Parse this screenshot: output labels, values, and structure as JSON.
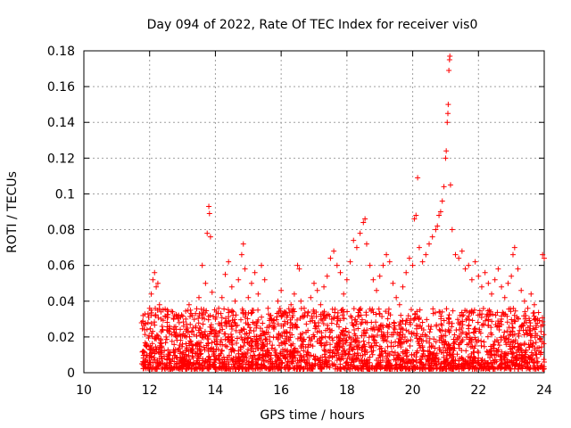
{
  "chart_data": {
    "type": "scatter",
    "title": "Day 094 of 2022, Rate Of TEC Index for receiver vis0",
    "xlabel": "GPS time / hours",
    "ylabel": "ROTI / TECUs",
    "xlim": [
      10,
      24
    ],
    "ylim": [
      0,
      0.18
    ],
    "x_ticks": [
      10,
      12,
      14,
      16,
      18,
      20,
      22,
      24
    ],
    "y_ticks": [
      0,
      0.02,
      0.04,
      0.06,
      0.08,
      0.1,
      0.12,
      0.14,
      0.16,
      0.18
    ],
    "x_tick_labels": [
      "10",
      "12",
      "14",
      "16",
      "18",
      "20",
      "22",
      "24"
    ],
    "y_tick_labels": [
      "0",
      "0.02",
      "0.04",
      "0.06",
      "0.08",
      "0.1",
      "0.12",
      "0.14",
      "0.16",
      "0.18"
    ],
    "grid": true,
    "marker": "+",
    "color": "#ff0000",
    "series": [
      {
        "name": "ROTI",
        "points": [
          [
            11.8,
            0.032
          ],
          [
            11.8,
            0.012
          ],
          [
            11.85,
            0.024
          ],
          [
            11.9,
            0.016
          ],
          [
            11.95,
            0.028
          ],
          [
            12.0,
            0.036
          ],
          [
            12.05,
            0.044
          ],
          [
            12.1,
            0.052
          ],
          [
            12.15,
            0.056
          ],
          [
            12.2,
            0.048
          ],
          [
            12.25,
            0.05
          ],
          [
            12.3,
            0.038
          ],
          [
            12.35,
            0.03
          ],
          [
            12.4,
            0.024
          ],
          [
            12.5,
            0.02
          ],
          [
            12.6,
            0.026
          ],
          [
            12.7,
            0.034
          ],
          [
            12.8,
            0.022
          ],
          [
            12.9,
            0.028
          ],
          [
            13.0,
            0.016
          ],
          [
            13.1,
            0.03
          ],
          [
            13.2,
            0.038
          ],
          [
            13.3,
            0.032
          ],
          [
            13.4,
            0.026
          ],
          [
            13.5,
            0.042
          ],
          [
            13.6,
            0.06
          ],
          [
            13.7,
            0.05
          ],
          [
            13.75,
            0.078
          ],
          [
            13.8,
            0.093
          ],
          [
            13.82,
            0.089
          ],
          [
            13.85,
            0.076
          ],
          [
            13.9,
            0.045
          ],
          [
            14.0,
            0.03
          ],
          [
            14.1,
            0.036
          ],
          [
            14.2,
            0.042
          ],
          [
            14.3,
            0.055
          ],
          [
            14.4,
            0.062
          ],
          [
            14.5,
            0.048
          ],
          [
            14.6,
            0.04
          ],
          [
            14.7,
            0.052
          ],
          [
            14.8,
            0.066
          ],
          [
            14.85,
            0.072
          ],
          [
            14.9,
            0.058
          ],
          [
            15.0,
            0.042
          ],
          [
            15.1,
            0.05
          ],
          [
            15.2,
            0.056
          ],
          [
            15.3,
            0.044
          ],
          [
            15.4,
            0.06
          ],
          [
            15.5,
            0.052
          ],
          [
            15.6,
            0.036
          ],
          [
            15.7,
            0.03
          ],
          [
            15.8,
            0.026
          ],
          [
            15.9,
            0.04
          ],
          [
            16.0,
            0.046
          ],
          [
            16.1,
            0.034
          ],
          [
            16.2,
            0.028
          ],
          [
            16.3,
            0.038
          ],
          [
            16.4,
            0.044
          ],
          [
            16.5,
            0.06
          ],
          [
            16.55,
            0.058
          ],
          [
            16.6,
            0.04
          ],
          [
            16.7,
            0.036
          ],
          [
            16.8,
            0.032
          ],
          [
            16.9,
            0.042
          ],
          [
            17.0,
            0.05
          ],
          [
            17.1,
            0.046
          ],
          [
            17.2,
            0.038
          ],
          [
            17.3,
            0.048
          ],
          [
            17.4,
            0.054
          ],
          [
            17.5,
            0.064
          ],
          [
            17.6,
            0.068
          ],
          [
            17.7,
            0.06
          ],
          [
            17.8,
            0.056
          ],
          [
            17.9,
            0.044
          ],
          [
            18.0,
            0.052
          ],
          [
            18.1,
            0.062
          ],
          [
            18.2,
            0.074
          ],
          [
            18.3,
            0.07
          ],
          [
            18.4,
            0.078
          ],
          [
            18.5,
            0.084
          ],
          [
            18.55,
            0.086
          ],
          [
            18.6,
            0.072
          ],
          [
            18.7,
            0.06
          ],
          [
            18.8,
            0.052
          ],
          [
            18.9,
            0.046
          ],
          [
            19.0,
            0.054
          ],
          [
            19.1,
            0.06
          ],
          [
            19.2,
            0.066
          ],
          [
            19.3,
            0.062
          ],
          [
            19.4,
            0.05
          ],
          [
            19.5,
            0.042
          ],
          [
            19.6,
            0.038
          ],
          [
            19.7,
            0.048
          ],
          [
            19.8,
            0.056
          ],
          [
            19.9,
            0.064
          ],
          [
            20.0,
            0.06
          ],
          [
            20.05,
            0.086
          ],
          [
            20.1,
            0.088
          ],
          [
            20.15,
            0.109
          ],
          [
            20.2,
            0.07
          ],
          [
            20.3,
            0.062
          ],
          [
            20.4,
            0.066
          ],
          [
            20.5,
            0.072
          ],
          [
            20.6,
            0.076
          ],
          [
            20.7,
            0.08
          ],
          [
            20.75,
            0.082
          ],
          [
            20.8,
            0.088
          ],
          [
            20.85,
            0.09
          ],
          [
            20.9,
            0.096
          ],
          [
            20.95,
            0.104
          ],
          [
            21.0,
            0.12
          ],
          [
            21.02,
            0.124
          ],
          [
            21.05,
            0.14
          ],
          [
            21.07,
            0.145
          ],
          [
            21.08,
            0.15
          ],
          [
            21.1,
            0.169
          ],
          [
            21.12,
            0.175
          ],
          [
            21.13,
            0.177
          ],
          [
            21.15,
            0.105
          ],
          [
            21.2,
            0.08
          ],
          [
            21.3,
            0.066
          ],
          [
            21.4,
            0.064
          ],
          [
            21.5,
            0.068
          ],
          [
            21.6,
            0.058
          ],
          [
            21.7,
            0.06
          ],
          [
            21.8,
            0.052
          ],
          [
            21.9,
            0.062
          ],
          [
            22.0,
            0.054
          ],
          [
            22.1,
            0.048
          ],
          [
            22.2,
            0.056
          ],
          [
            22.3,
            0.05
          ],
          [
            22.4,
            0.044
          ],
          [
            22.5,
            0.052
          ],
          [
            22.6,
            0.058
          ],
          [
            22.7,
            0.048
          ],
          [
            22.8,
            0.042
          ],
          [
            22.9,
            0.05
          ],
          [
            23.0,
            0.054
          ],
          [
            23.05,
            0.066
          ],
          [
            23.1,
            0.07
          ],
          [
            23.2,
            0.058
          ],
          [
            23.3,
            0.046
          ],
          [
            23.4,
            0.04
          ],
          [
            23.5,
            0.036
          ],
          [
            23.6,
            0.044
          ],
          [
            23.7,
            0.038
          ],
          [
            23.8,
            0.03
          ],
          [
            23.9,
            0.026
          ],
          [
            23.95,
            0.066
          ],
          [
            24.0,
            0.064
          ],
          [
            12.0,
            0.006
          ],
          [
            12.3,
            0.008
          ],
          [
            12.6,
            0.004
          ],
          [
            12.9,
            0.006
          ],
          [
            13.2,
            0.005
          ],
          [
            13.5,
            0.008
          ],
          [
            13.8,
            0.006
          ],
          [
            14.1,
            0.007
          ],
          [
            14.4,
            0.006
          ],
          [
            14.7,
            0.008
          ],
          [
            15.0,
            0.005
          ],
          [
            15.3,
            0.007
          ],
          [
            15.6,
            0.006
          ],
          [
            15.9,
            0.008
          ],
          [
            16.2,
            0.006
          ],
          [
            16.5,
            0.007
          ],
          [
            16.8,
            0.005
          ],
          [
            17.1,
            0.008
          ],
          [
            17.4,
            0.006
          ],
          [
            17.7,
            0.007
          ],
          [
            18.0,
            0.006
          ],
          [
            18.3,
            0.008
          ],
          [
            18.6,
            0.005
          ],
          [
            18.9,
            0.007
          ],
          [
            19.2,
            0.006
          ],
          [
            19.5,
            0.008
          ],
          [
            19.8,
            0.006
          ],
          [
            20.1,
            0.007
          ],
          [
            20.4,
            0.005
          ],
          [
            20.7,
            0.008
          ],
          [
            21.0,
            0.006
          ],
          [
            21.3,
            0.007
          ],
          [
            21.6,
            0.006
          ],
          [
            21.9,
            0.008
          ],
          [
            22.2,
            0.005
          ],
          [
            22.5,
            0.007
          ],
          [
            22.8,
            0.006
          ],
          [
            23.1,
            0.008
          ],
          [
            23.4,
            0.006
          ],
          [
            23.7,
            0.007
          ],
          [
            24.0,
            0.006
          ],
          [
            12.9,
            0.003
          ],
          [
            13.0,
            0.002
          ],
          [
            16.1,
            0.003
          ],
          [
            19.3,
            0.003
          ],
          [
            22.6,
            0.003
          ],
          [
            23.9,
            0.004
          ]
        ]
      }
    ],
    "dense_band": {
      "x_range": [
        11.75,
        24
      ],
      "y_range": [
        0.002,
        0.036
      ],
      "n_points": 2600,
      "seed": 94
    }
  }
}
